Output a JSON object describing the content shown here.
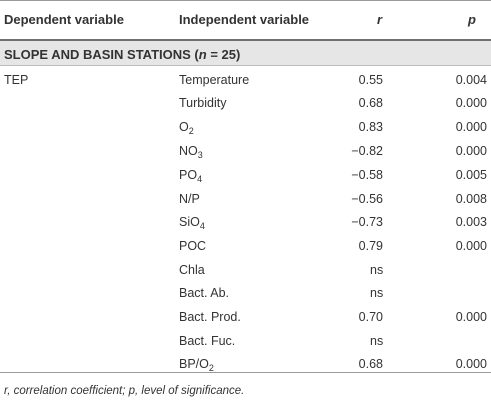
{
  "header": {
    "dependent": "Dependent variable",
    "independent": "Independent variable",
    "r": "r",
    "p": "p"
  },
  "section": {
    "label_prefix": "SLOPE AND BASIN STATIONS (",
    "label_n": "n",
    "label_suffix": " = 25)"
  },
  "rows": [
    {
      "dep": "TEP",
      "ind": "Temperature",
      "sub": "",
      "ind_after": "",
      "r": "0.55",
      "p": "0.004"
    },
    {
      "dep": "",
      "ind": "Turbidity",
      "sub": "",
      "ind_after": "",
      "r": "0.68",
      "p": "0.000"
    },
    {
      "dep": "",
      "ind": "O",
      "sub": "2",
      "ind_after": "",
      "r": "0.83",
      "p": "0.000"
    },
    {
      "dep": "",
      "ind": "NO",
      "sub": "3",
      "ind_after": "",
      "r": "−0.82",
      "p": "0.000"
    },
    {
      "dep": "",
      "ind": "PO",
      "sub": "4",
      "ind_after": "",
      "r": "−0.58",
      "p": "0.005"
    },
    {
      "dep": "",
      "ind": "N/P",
      "sub": "",
      "ind_after": "",
      "r": "−0.56",
      "p": "0.008"
    },
    {
      "dep": "",
      "ind": "SiO",
      "sub": "4",
      "ind_after": "",
      "r": "−0.73",
      "p": "0.003"
    },
    {
      "dep": "",
      "ind": "POC",
      "sub": "",
      "ind_after": "",
      "r": "0.79",
      "p": "0.000"
    },
    {
      "dep": "",
      "ind": "Chla",
      "sub": "",
      "ind_after": "",
      "r": "ns",
      "p": ""
    },
    {
      "dep": "",
      "ind": "Bact. Ab.",
      "sub": "",
      "ind_after": "",
      "r": "ns",
      "p": ""
    },
    {
      "dep": "",
      "ind": "Bact. Prod.",
      "sub": "",
      "ind_after": "",
      "r": "0.70",
      "p": "0.000"
    },
    {
      "dep": "",
      "ind": "Bact. Fuc.",
      "sub": "",
      "ind_after": "",
      "r": "ns",
      "p": ""
    },
    {
      "dep": "",
      "ind": "BP/O",
      "sub": "2",
      "ind_after": "",
      "r": "0.68",
      "p": "0.000"
    }
  ],
  "footnote": "r, correlation coefficient; p, level of significance."
}
